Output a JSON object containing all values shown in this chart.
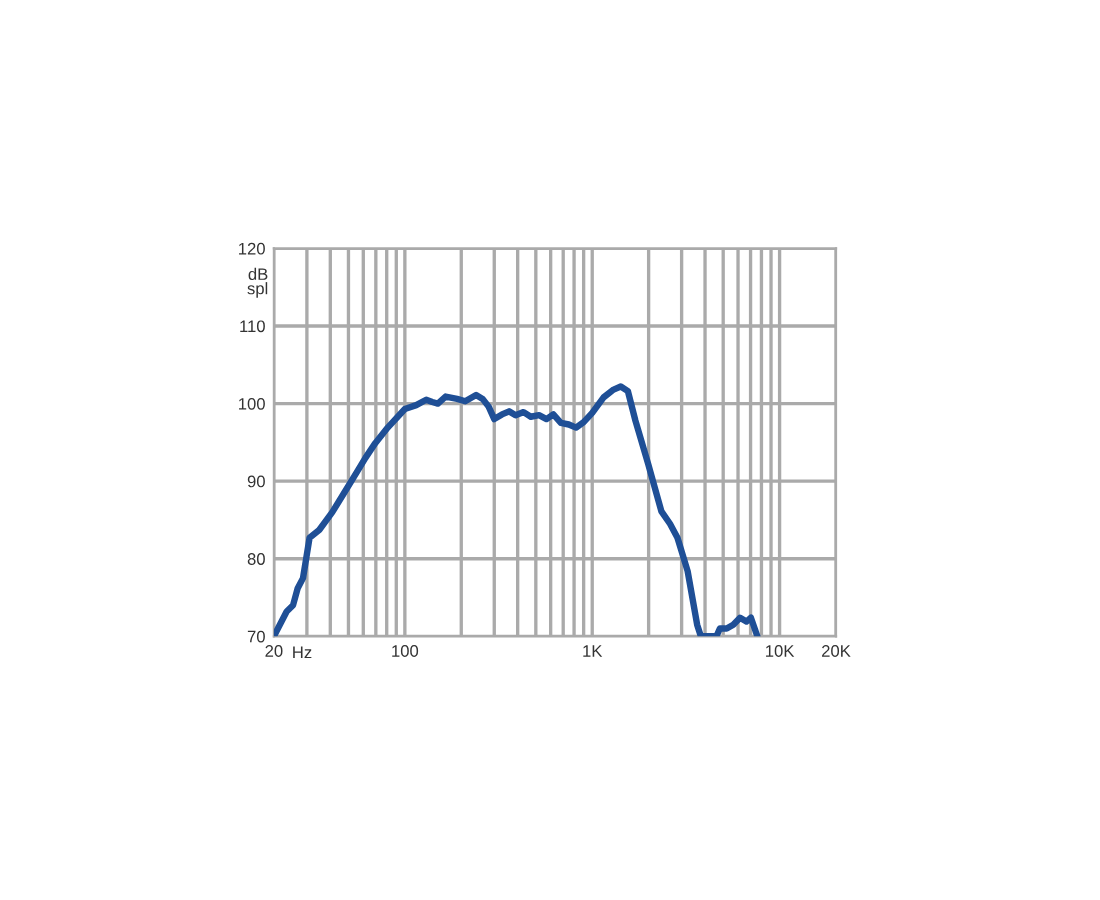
{
  "chart_data": {
    "type": "line",
    "xlabel": "Hz",
    "ylabel": "dB spl",
    "log": "x",
    "grid": true,
    "xlim": [
      20,
      20000
    ],
    "ylim": [
      70,
      120
    ],
    "xticks": [
      20,
      {
        "value": 30,
        "label": null
      },
      {
        "value": 40,
        "label": null
      },
      {
        "value": 50,
        "label": null
      },
      {
        "value": 60,
        "label": null
      },
      {
        "value": 70,
        "label": null
      },
      {
        "value": 80,
        "label": null
      },
      {
        "value": 90,
        "label": null
      },
      100,
      {
        "value": 200,
        "label": null
      },
      {
        "value": 300,
        "label": null
      },
      {
        "value": 400,
        "label": null
      },
      {
        "value": 500,
        "label": null
      },
      {
        "value": 600,
        "label": null
      },
      {
        "value": 700,
        "label": null
      },
      {
        "value": 800,
        "label": null
      },
      {
        "value": 900,
        "label": null
      },
      {
        "value": 1000,
        "label": "1K"
      },
      {
        "value": 2000,
        "label": null
      },
      {
        "value": 3000,
        "label": null
      },
      {
        "value": 4000,
        "label": null
      },
      {
        "value": 5000,
        "label": null
      },
      {
        "value": 6000,
        "label": null
      },
      {
        "value": 7000,
        "label": null
      },
      {
        "value": 8000,
        "label": null
      },
      {
        "value": 9000,
        "label": null
      },
      {
        "value": 10000,
        "label": "10K"
      },
      {
        "value": 20000,
        "label": "20K"
      }
    ],
    "yticks": [
      70,
      80,
      90,
      100,
      110,
      120
    ],
    "series": [
      {
        "color": "#1f4f96",
        "x": [
          20,
          23.4,
          25.3,
          26.8,
          28.6,
          31,
          34.9,
          41,
          48,
          54.6,
          61.6,
          69.5,
          81,
          100,
          115,
          130,
          140,
          150,
          165,
          190,
          210,
          240,
          260,
          280,
          300,
          330,
          360,
          390,
          430,
          470,
          520,
          570,
          620,
          680,
          750,
          820,
          900,
          1000,
          1150,
          1300,
          1420,
          1550,
          1700,
          1990,
          2340,
          2600,
          2850,
          3230,
          3630,
          3800,
          4600,
          4800,
          5220,
          5660,
          6150,
          6650,
          7030,
          7560
        ],
        "values": [
          70,
          73.2,
          74,
          76.2,
          77.5,
          82.7,
          83.7,
          86,
          88.7,
          90.9,
          93,
          94.9,
          96.9,
          99.3,
          99.8,
          100.5,
          100.2,
          100,
          100.9,
          100.6,
          100.3,
          101.1,
          100.6,
          99.6,
          98,
          98.6,
          99,
          98.5,
          98.9,
          98.3,
          98.5,
          98,
          98.6,
          97.5,
          97.3,
          96.9,
          97.6,
          98.8,
          100.8,
          101.8,
          102.2,
          101.6,
          97.8,
          92.2,
          86.1,
          84.5,
          82.7,
          78.4,
          71.5,
          70,
          70,
          71,
          71,
          71.5,
          72.4,
          71.9,
          72.4,
          70.2
        ]
      }
    ]
  }
}
